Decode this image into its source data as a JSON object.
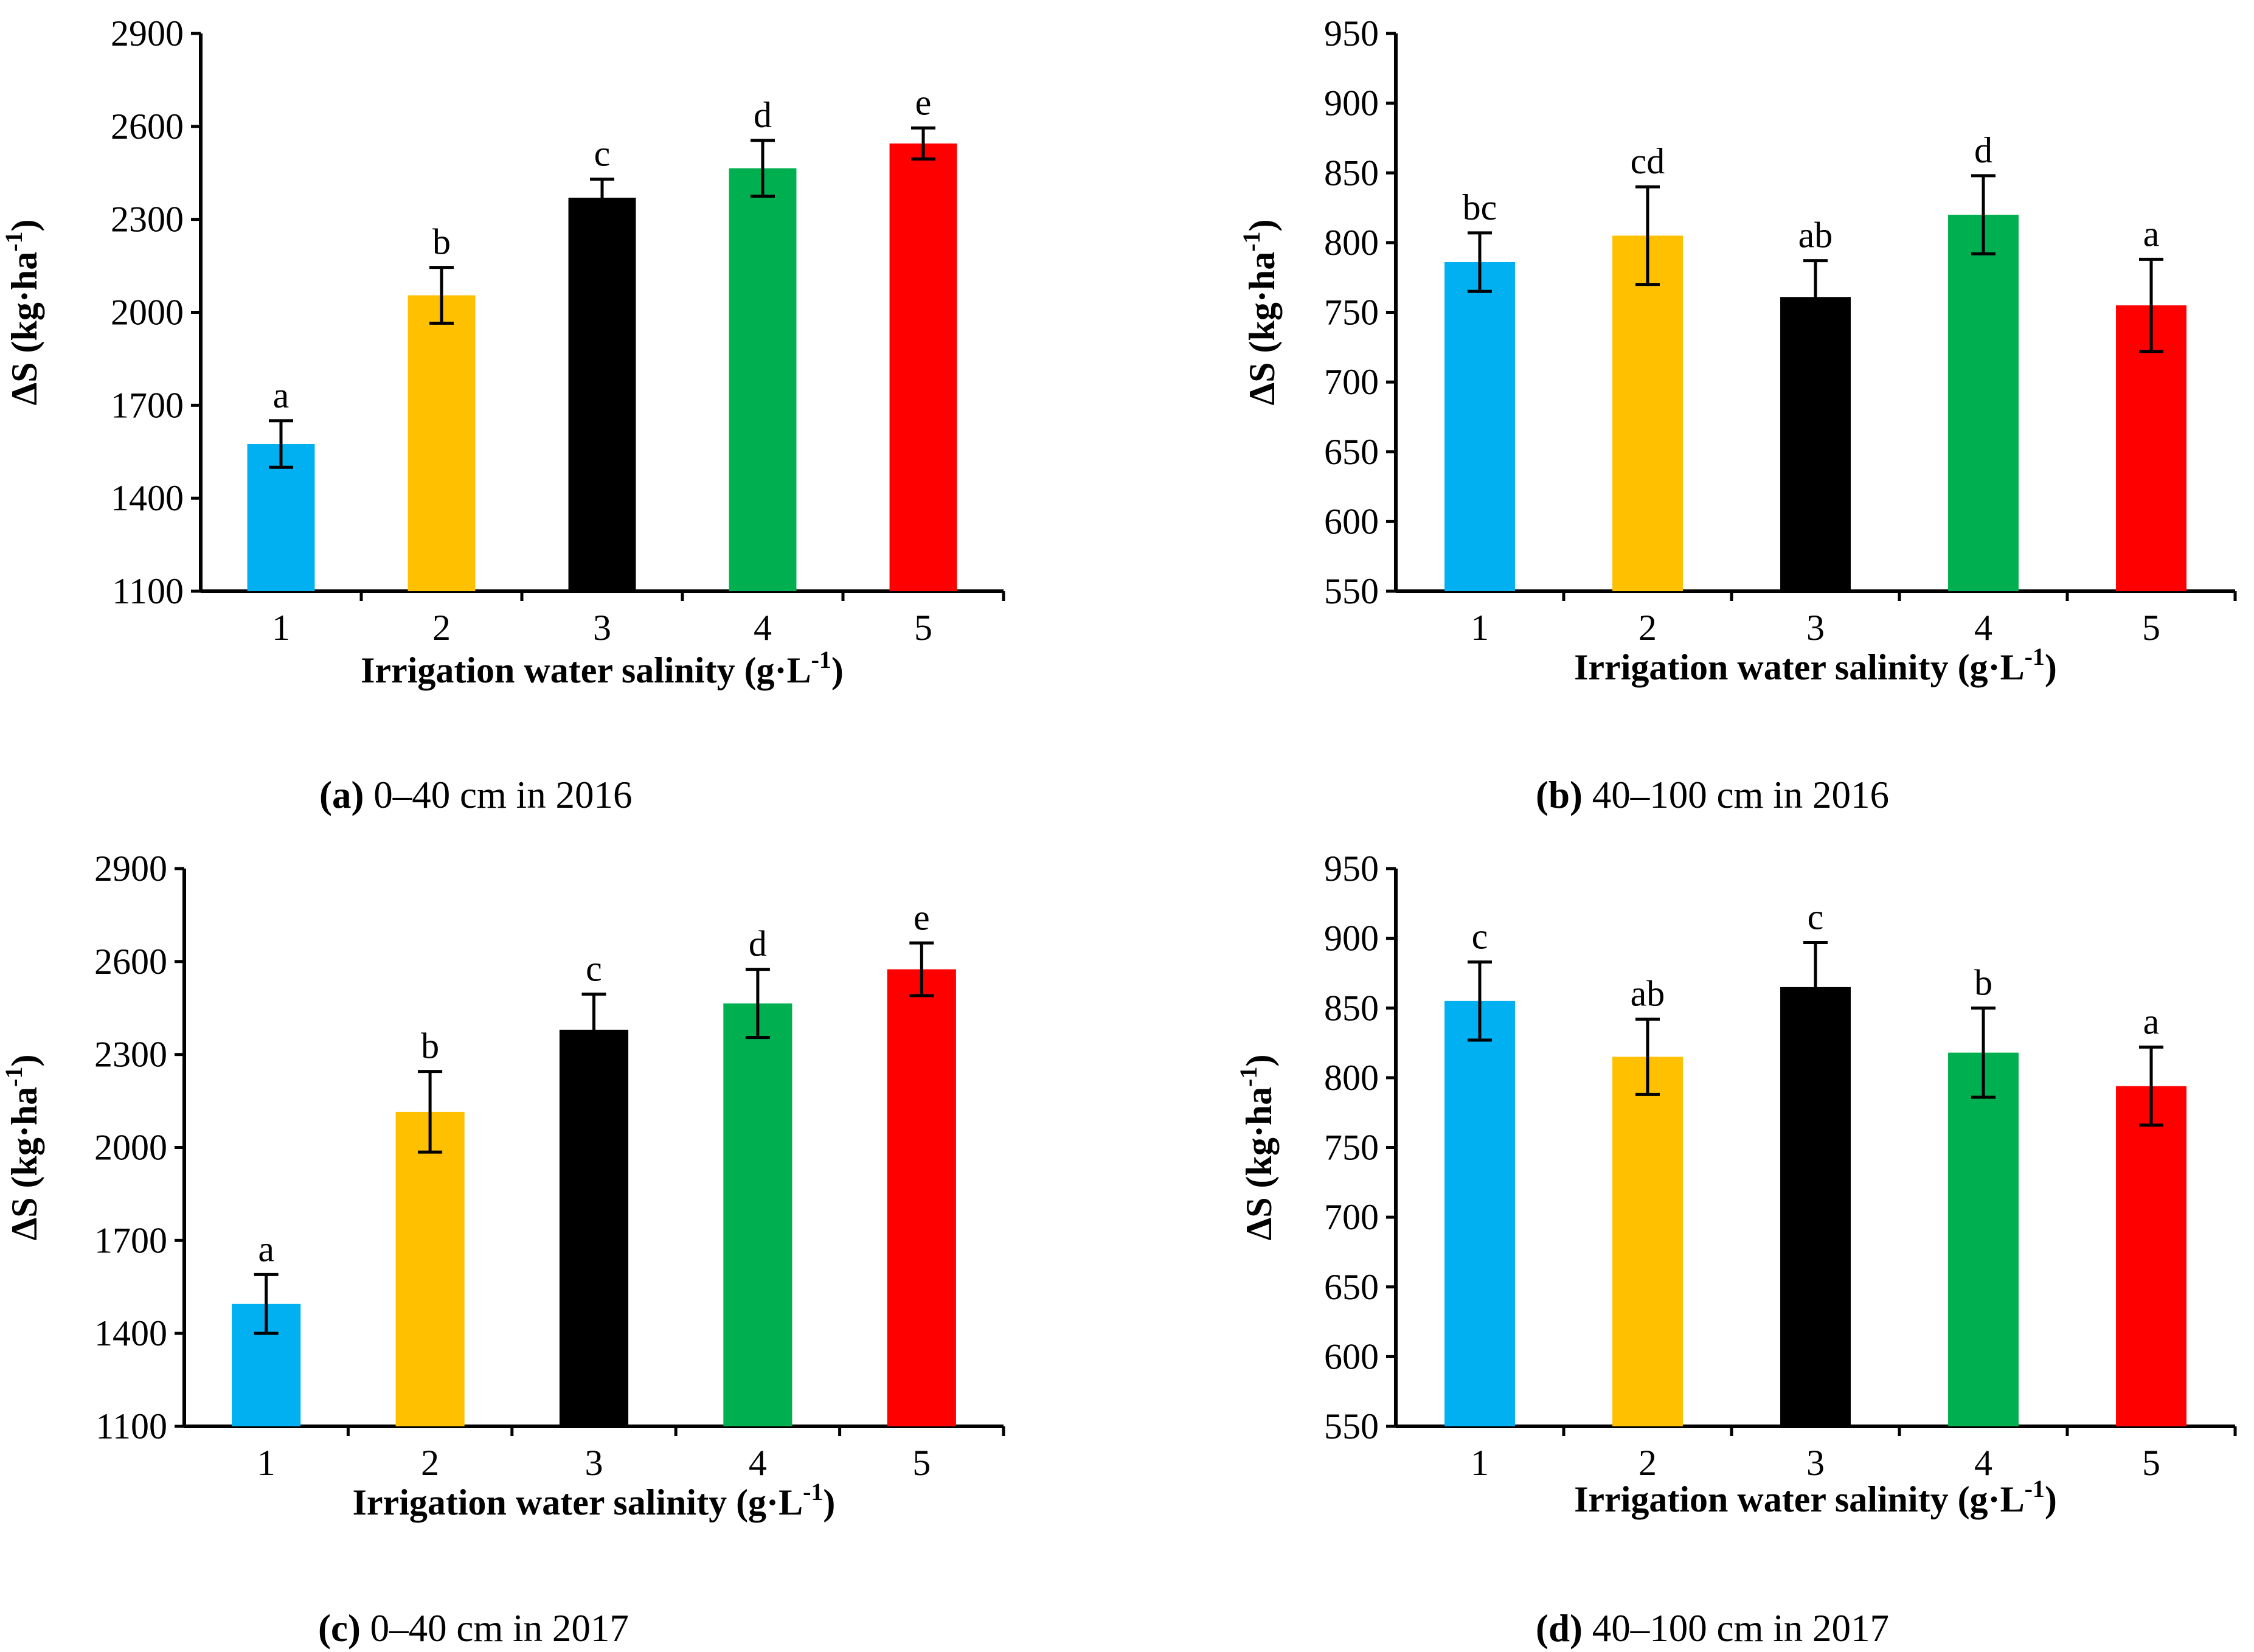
{
  "colors": {
    "salinity_1": "#00B0F0",
    "salinity_2": "#FFC000",
    "salinity_3": "#000000",
    "salinity_4": "#00B050",
    "salinity_5": "#FF0000"
  },
  "chart_data": [
    {
      "type": "bar",
      "panel": "a",
      "caption_letter": "(a)",
      "caption_text": "0–40 cm in 2016",
      "categories": [
        "1",
        "2",
        "3",
        "4",
        "5"
      ],
      "values": [
        1575,
        2055,
        2370,
        2465,
        2545
      ],
      "errors": [
        75,
        90,
        60,
        90,
        50
      ],
      "significance": [
        "a",
        "b",
        "c",
        "d",
        "e"
      ],
      "ylim": [
        1100,
        2900
      ],
      "yticks": [
        1100,
        1400,
        1700,
        2000,
        2300,
        2600,
        2900
      ],
      "ylabel_main": "ΔS",
      "ylabel_unit": "(kg·ha",
      "ylabel_sup": "-1",
      "ylabel_close": ")",
      "xlabel_main": "Irrigation water salinity (g·L",
      "xlabel_sup": "-1",
      "xlabel_close": ")"
    },
    {
      "type": "bar",
      "panel": "b",
      "caption_letter": "(b)",
      "caption_text": "40–100 cm in 2016",
      "categories": [
        "1",
        "2",
        "3",
        "4",
        "5"
      ],
      "values": [
        786,
        805,
        761,
        820,
        755
      ],
      "errors": [
        21,
        35,
        26,
        28,
        33
      ],
      "significance": [
        "bc",
        "cd",
        "ab",
        "d",
        "a"
      ],
      "ylim": [
        550,
        950
      ],
      "yticks": [
        550,
        600,
        650,
        700,
        750,
        800,
        850,
        900,
        950
      ],
      "ylabel_main": "ΔS",
      "ylabel_unit": "(kg·ha",
      "ylabel_sup": "-1",
      "ylabel_close": ")",
      "xlabel_main": "Irrigation water salinity (g·L",
      "xlabel_sup": "-1",
      "xlabel_close": ")"
    },
    {
      "type": "bar",
      "panel": "c",
      "caption_letter": "(c)",
      "caption_text": "0–40 cm in 2017",
      "categories": [
        "1",
        "2",
        "3",
        "4",
        "5"
      ],
      "values": [
        1495,
        2115,
        2380,
        2465,
        2575
      ],
      "errors": [
        95,
        130,
        115,
        110,
        85
      ],
      "significance": [
        "a",
        "b",
        "c",
        "d",
        "e"
      ],
      "ylim": [
        1100,
        2900
      ],
      "yticks": [
        1100,
        1400,
        1700,
        2000,
        2300,
        2600,
        2900
      ],
      "ylabel_main": "ΔS",
      "ylabel_unit": "(kg·ha",
      "ylabel_sup": "-1",
      "ylabel_close": ")",
      "xlabel_main": "Irrigation water salinity (g·L",
      "xlabel_sup": "-1",
      "xlabel_close": ")"
    },
    {
      "type": "bar",
      "panel": "d",
      "caption_letter": "(d)",
      "caption_text": "40–100 cm in 2017",
      "categories": [
        "1",
        "2",
        "3",
        "4",
        "5"
      ],
      "values": [
        855,
        815,
        865,
        818,
        794
      ],
      "errors": [
        28,
        27,
        32,
        32,
        28
      ],
      "significance": [
        "c",
        "ab",
        "c",
        "b",
        "a"
      ],
      "ylim": [
        550,
        950
      ],
      "yticks": [
        550,
        600,
        650,
        700,
        750,
        800,
        850,
        900,
        950
      ],
      "ylabel_main": "ΔS",
      "ylabel_unit": "(kg·ha",
      "ylabel_sup": "-1",
      "ylabel_close": ")",
      "xlabel_main": "Irrigation water salinity (g·L",
      "xlabel_sup": "-1",
      "xlabel_close": ")"
    }
  ]
}
